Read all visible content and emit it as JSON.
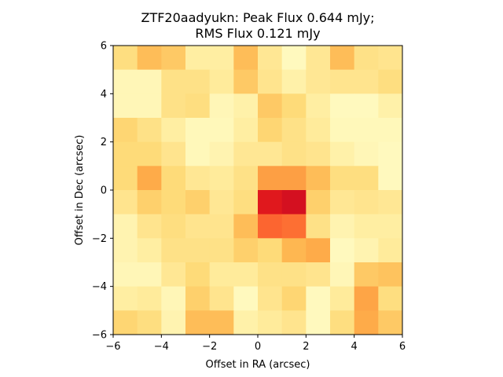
{
  "chart_data": {
    "type": "heatmap",
    "title_line1": "ZTF20aadyukn: Peak Flux 0.644 mJy;",
    "title_line2": "RMS Flux 0.121 mJy",
    "xlabel": "Offset in RA (arcsec)",
    "ylabel": "Offset in Dec (arcsec)",
    "xlim": [
      -6,
      6
    ],
    "ylim": [
      -6,
      6
    ],
    "xticks": [
      -6,
      -4,
      -2,
      0,
      2,
      4,
      6
    ],
    "yticks": [
      -6,
      -4,
      -2,
      0,
      2,
      4,
      6
    ],
    "xtick_labels": [
      "−6",
      "−4",
      "−2",
      "0",
      "2",
      "4",
      "6"
    ],
    "ytick_labels": [
      "−6",
      "−4",
      "−2",
      "0",
      "2",
      "4",
      "6"
    ],
    "colormap": "YlOrRd",
    "value_range": [
      0,
      1
    ],
    "grid": {
      "rows": 12,
      "cols": 12,
      "row_order": "top-to-bottom",
      "values": [
        [
          0.22,
          0.34,
          0.3,
          0.12,
          0.12,
          0.34,
          0.16,
          0.04,
          0.16,
          0.34,
          0.2,
          0.18
        ],
        [
          0.06,
          0.06,
          0.2,
          0.2,
          0.14,
          0.3,
          0.18,
          0.1,
          0.16,
          0.18,
          0.18,
          0.22
        ],
        [
          0.06,
          0.06,
          0.2,
          0.22,
          0.06,
          0.1,
          0.3,
          0.24,
          0.12,
          0.04,
          0.04,
          0.1
        ],
        [
          0.26,
          0.2,
          0.12,
          0.05,
          0.05,
          0.12,
          0.26,
          0.2,
          0.14,
          0.05,
          0.05,
          0.05
        ],
        [
          0.24,
          0.24,
          0.18,
          0.05,
          0.08,
          0.16,
          0.16,
          0.2,
          0.18,
          0.1,
          0.06,
          0.04
        ],
        [
          0.24,
          0.4,
          0.24,
          0.16,
          0.14,
          0.2,
          0.44,
          0.44,
          0.34,
          0.22,
          0.22,
          0.04
        ],
        [
          0.18,
          0.28,
          0.24,
          0.28,
          0.16,
          0.22,
          0.76,
          0.8,
          0.28,
          0.16,
          0.18,
          0.16
        ],
        [
          0.08,
          0.18,
          0.22,
          0.18,
          0.18,
          0.34,
          0.58,
          0.56,
          0.2,
          0.08,
          0.12,
          0.12
        ],
        [
          0.08,
          0.12,
          0.2,
          0.2,
          0.2,
          0.28,
          0.24,
          0.36,
          0.4,
          0.04,
          0.08,
          0.14
        ],
        [
          0.06,
          0.06,
          0.16,
          0.24,
          0.14,
          0.14,
          0.2,
          0.2,
          0.18,
          0.06,
          0.3,
          0.32
        ],
        [
          0.12,
          0.14,
          0.06,
          0.28,
          0.18,
          0.04,
          0.18,
          0.26,
          0.04,
          0.14,
          0.42,
          0.22
        ],
        [
          0.26,
          0.22,
          0.08,
          0.34,
          0.34,
          0.1,
          0.14,
          0.18,
          0.04,
          0.22,
          0.4,
          0.3
        ]
      ]
    }
  }
}
